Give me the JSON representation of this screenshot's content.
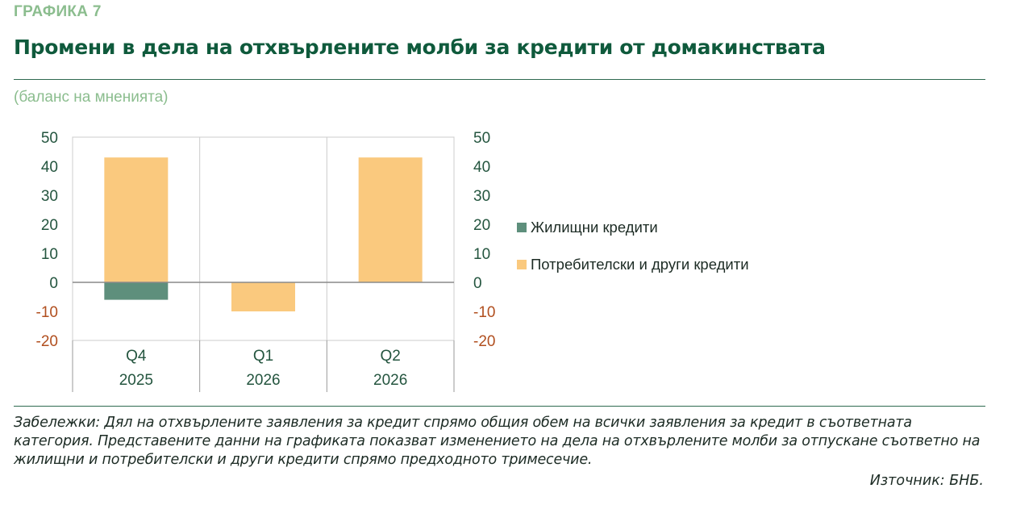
{
  "header": {
    "figure_label": "ГРАФИКА 7",
    "title": "Промени в дела на отхвърлените молби за кредити от домакинствата",
    "subtitle": "(баланс на мненията)"
  },
  "colors": {
    "housing": "#5e8f7c",
    "consumer": "#fac97e",
    "axis_text": "#24553f",
    "neg_text": "#b14f1f",
    "grid": "#cccccc",
    "rule": "#2f6a50"
  },
  "chart_data": {
    "type": "bar",
    "stacked": true,
    "categories": [
      "Q4",
      "Q1",
      "Q2"
    ],
    "category_years": [
      "2025",
      "2026",
      "2026"
    ],
    "series": [
      {
        "name": "Жилищни кредити",
        "values": [
          -6,
          0,
          0
        ],
        "color": "#5e8f7c"
      },
      {
        "name": "Потребителски и други кредити",
        "values": [
          43,
          -10,
          43
        ],
        "color": "#fac97e"
      }
    ],
    "ylim": [
      -20,
      50
    ],
    "yticks": [
      50,
      40,
      30,
      20,
      10,
      0,
      -10,
      -20
    ],
    "grid": true,
    "legend_position": "right",
    "secondary_axis": true
  },
  "footer": {
    "notes": "Забележки: Дял на отхвърлените заявления за кредит спрямо общия обем на всички заявления за кредит в съответната категория. Представените данни на графиката показват изменението на дела на отхвърлените молби за отпускане съответно на жилищни и потребителски и други кредити спрямо предходното тримесечие.",
    "source": "Източник: БНБ."
  }
}
